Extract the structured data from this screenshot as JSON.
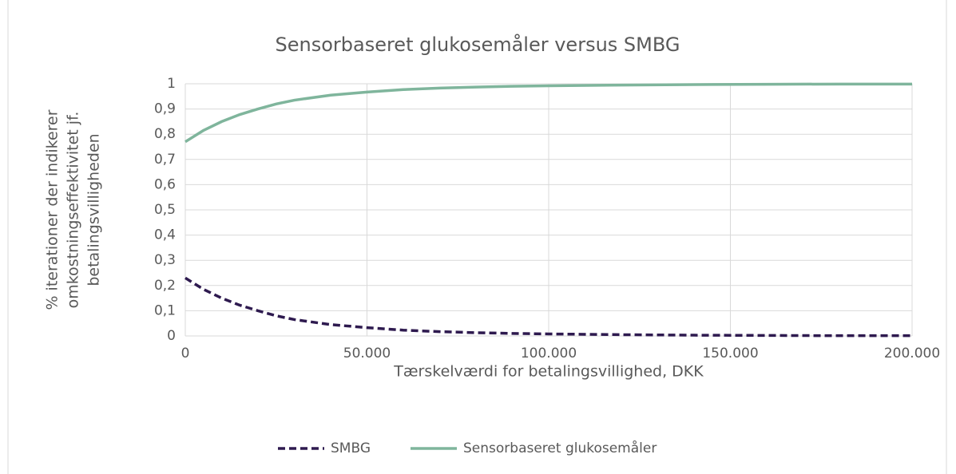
{
  "chart_data": {
    "type": "line",
    "title": "Sensorbaseret glukosemåler versus SMBG",
    "xlabel": "Tærskelværdi for betalingsvillighed, DKK",
    "ylabel": [
      "% iterationer der indikerer",
      "omkostningseffektivitet jf.",
      "betalingsvilligheden"
    ],
    "x": [
      0,
      5000,
      10000,
      15000,
      20000,
      25000,
      30000,
      40000,
      50000,
      60000,
      70000,
      80000,
      90000,
      100000,
      120000,
      140000,
      160000,
      180000,
      200000
    ],
    "series": [
      {
        "name": "SMBG",
        "color": "#2e1a4f",
        "line_style": "dashed",
        "values": [
          0.23,
          0.185,
          0.15,
          0.122,
          0.1,
          0.08,
          0.065,
          0.045,
          0.033,
          0.023,
          0.017,
          0.013,
          0.01,
          0.008,
          0.005,
          0.003,
          0.002,
          0.001,
          0.001
        ]
      },
      {
        "name": "Sensorbaseret glukosemåler",
        "color": "#7fb59c",
        "line_style": "solid",
        "values": [
          0.77,
          0.815,
          0.85,
          0.878,
          0.9,
          0.92,
          0.935,
          0.955,
          0.967,
          0.977,
          0.983,
          0.987,
          0.99,
          0.992,
          0.995,
          0.997,
          0.998,
          0.999,
          0.999
        ]
      }
    ],
    "xlim": [
      0,
      200000
    ],
    "xticks": [
      0,
      {
        "value": 50000,
        "label": "50.000"
      },
      {
        "value": 100000,
        "label": "100.000"
      },
      {
        "value": 150000,
        "label": "150.000"
      },
      {
        "value": 200000,
        "label": "200.000"
      }
    ],
    "ylim": [
      0,
      1
    ],
    "yticks": [
      0,
      {
        "value": 0.1,
        "label": "0,1"
      },
      {
        "value": 0.2,
        "label": "0,2"
      },
      {
        "value": 0.3,
        "label": "0,3"
      },
      {
        "value": 0.4,
        "label": "0,4"
      },
      {
        "value": 0.5,
        "label": "0,5"
      },
      {
        "value": 0.6,
        "label": "0,6"
      },
      {
        "value": 0.7,
        "label": "0,7"
      },
      {
        "value": 0.8,
        "label": "0,8"
      },
      {
        "value": 0.9,
        "label": "0,9"
      },
      1
    ],
    "grid": true,
    "legend": "bottom"
  }
}
